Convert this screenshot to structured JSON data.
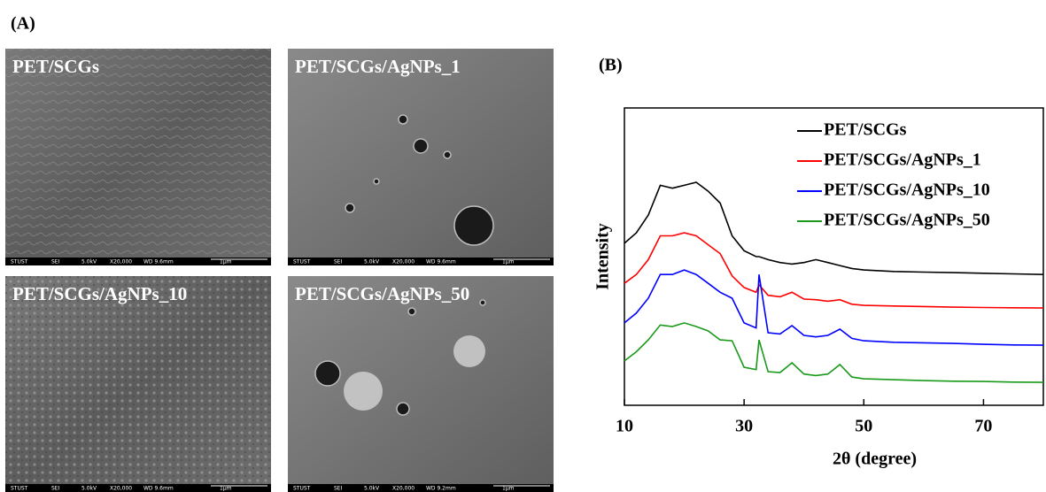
{
  "figure": {
    "panel_a_label": "(A)",
    "panel_b_label": "(B)",
    "sem_images": [
      {
        "label": "PET/SCGs",
        "footer": [
          "STUST",
          "SEI",
          "5.0kV",
          "X20,000",
          "WD 9.6mm",
          "1μm"
        ]
      },
      {
        "label": "PET/SCGs/AgNPs_1",
        "footer": [
          "STUST",
          "SEI",
          "5.0kV",
          "X20,000",
          "WD 9.6mm",
          "1μm"
        ]
      },
      {
        "label": "PET/SCGs/AgNPs_10",
        "footer": [
          "STUST",
          "SEI",
          "5.0kV",
          "X20,000",
          "WD 9.6mm",
          "1μm"
        ]
      },
      {
        "label": "PET/SCGs/AgNPs_50",
        "footer": [
          "STUST",
          "SEI",
          "5.0kV",
          "X20,000",
          "WD 9.2mm",
          "1μm"
        ]
      }
    ]
  },
  "chart_data": {
    "type": "line",
    "xlabel": "2θ (degree)",
    "ylabel": "Intensity",
    "xlim": [
      10,
      80
    ],
    "ylim": [
      0,
      100
    ],
    "xticks": [
      10,
      30,
      50,
      70
    ],
    "legend": "upper right",
    "x": [
      10,
      12,
      14,
      16,
      18,
      20,
      22,
      24,
      26,
      28,
      30,
      32,
      32.5,
      34,
      36,
      38,
      40,
      42,
      44,
      46,
      48,
      50,
      55,
      60,
      65,
      70,
      75,
      80
    ],
    "series": [
      {
        "name": "PET/SCGs",
        "color": "#000000",
        "values": [
          54.5,
          58,
          64,
          74,
          73,
          74,
          75,
          72,
          68,
          57,
          52,
          50,
          50,
          49,
          48,
          47.5,
          48,
          49,
          48,
          47,
          46,
          45.5,
          45,
          44.8,
          44.6,
          44.4,
          44.2,
          44
        ]
      },
      {
        "name": "PET/SCGs/AgNPs_1",
        "color": "#ff0000",
        "values": [
          41,
          44,
          49,
          57,
          57,
          58,
          57,
          54,
          51,
          43.5,
          39.6,
          38,
          40.5,
          37,
          36.5,
          38,
          35.7,
          35.5,
          35,
          35.5,
          34,
          33.6,
          33.4,
          33.2,
          33,
          32.9,
          32.8,
          32.7
        ]
      },
      {
        "name": "PET/SCGs/AgNPs_10",
        "color": "#0000ff",
        "values": [
          27.7,
          31,
          36,
          44,
          44,
          45.5,
          44,
          41,
          38,
          36,
          27.7,
          26,
          44,
          24.4,
          24,
          26.8,
          23.5,
          23,
          23.5,
          25.6,
          22.5,
          21.7,
          21.2,
          21,
          20.8,
          20.5,
          20.3,
          20.2
        ]
      },
      {
        "name": "PET/SCGs/AgNPs_50",
        "color": "#1a9a1a",
        "values": [
          14.9,
          18,
          22,
          27,
          26.5,
          27.7,
          26.5,
          25,
          22,
          21.7,
          12.8,
          12,
          22,
          11.3,
          11,
          14.3,
          10.5,
          10,
          10.5,
          13.7,
          9.5,
          8.9,
          8.6,
          8.3,
          8.1,
          8,
          7.8,
          7.7
        ]
      }
    ]
  }
}
